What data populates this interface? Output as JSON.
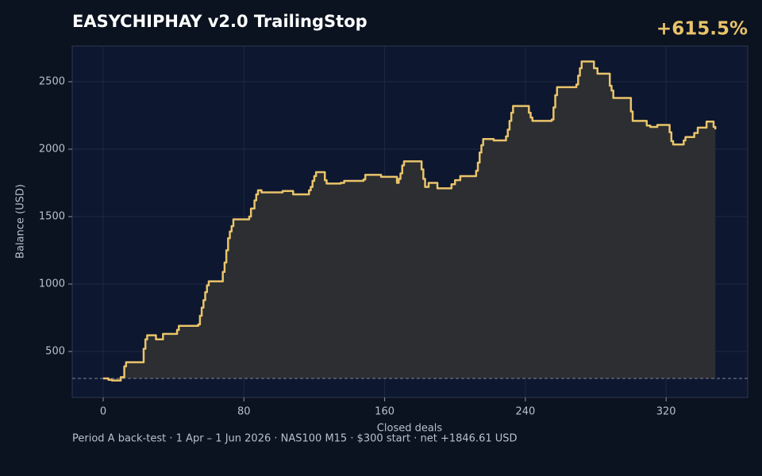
{
  "chart_data": {
    "type": "step",
    "title": "EASYCHIPHAY v2.0 TrailingStop",
    "annotation": "+615.5%",
    "y_label": "Balance (USD)",
    "x_label": "Closed deals",
    "footer": "Period A back-test  ·  1 Apr – 1 Jun 2026  ·  NAS100 M15  ·  $300 start  ·  net +1846.61 USD",
    "color": "#e9c46a",
    "fill_color": "#2c2e31",
    "reference_line": 300,
    "grid": true,
    "x": [
      0,
      3,
      5,
      10,
      12,
      13,
      23,
      24,
      25,
      30,
      34,
      42,
      43,
      54,
      55,
      56,
      57,
      58,
      59,
      60,
      68,
      69,
      70,
      71,
      72,
      73,
      74,
      83,
      84,
      86,
      87,
      88,
      90,
      102,
      108,
      117,
      118,
      119,
      120,
      121,
      126,
      127,
      135,
      137,
      148,
      149,
      158,
      167,
      168,
      169,
      170,
      171,
      181,
      182,
      183,
      185,
      190,
      198,
      200,
      203,
      212,
      213,
      214,
      215,
      216,
      222,
      229,
      230,
      231,
      232,
      233,
      242,
      243,
      244,
      255,
      256,
      257,
      258,
      269,
      270,
      271,
      272,
      279,
      281,
      288,
      289,
      290,
      300,
      301,
      309,
      311,
      315,
      322,
      323,
      324,
      330,
      331,
      336,
      338,
      343,
      347,
      348
    ],
    "values": [
      300,
      290,
      285,
      310,
      390,
      420,
      520,
      590,
      620,
      590,
      630,
      660,
      690,
      700,
      765,
      825,
      880,
      940,
      990,
      1020,
      1090,
      1160,
      1250,
      1340,
      1390,
      1430,
      1480,
      1500,
      1560,
      1620,
      1665,
      1695,
      1680,
      1690,
      1665,
      1695,
      1720,
      1765,
      1800,
      1830,
      1770,
      1745,
      1750,
      1765,
      1775,
      1810,
      1795,
      1750,
      1780,
      1820,
      1880,
      1910,
      1850,
      1780,
      1720,
      1750,
      1710,
      1740,
      1770,
      1800,
      1840,
      1900,
      1975,
      2030,
      2075,
      2065,
      2095,
      2145,
      2210,
      2270,
      2320,
      2270,
      2235,
      2210,
      2220,
      2310,
      2400,
      2460,
      2480,
      2545,
      2600,
      2650,
      2600,
      2560,
      2470,
      2435,
      2380,
      2280,
      2210,
      2175,
      2165,
      2180,
      2125,
      2060,
      2035,
      2065,
      2090,
      2120,
      2160,
      2205,
      2165,
      2146.61
    ],
    "xlim": [
      -17.6,
      366.4
    ],
    "ylim": [
      159,
      2765
    ],
    "xticks": [
      0,
      80,
      160,
      240,
      320
    ],
    "yticks": [
      500,
      1000,
      1500,
      2000,
      2500
    ]
  }
}
